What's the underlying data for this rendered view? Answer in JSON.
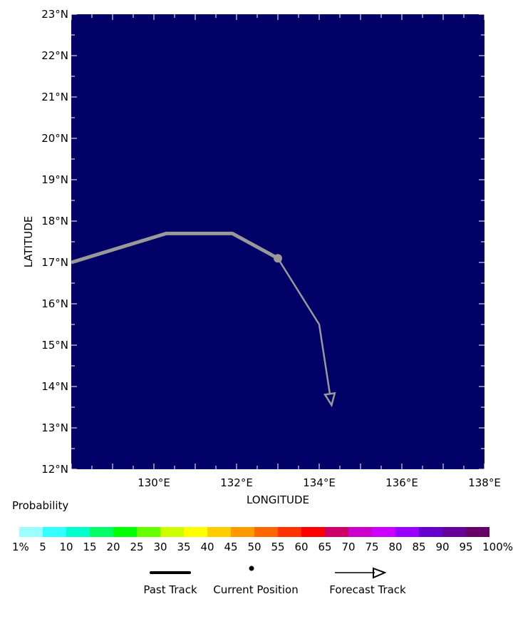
{
  "chart_data": {
    "type": "line",
    "xlabel": "LONGITUDE",
    "ylabel": "LATITUDE",
    "xlim": [
      128,
      138
    ],
    "ylim": [
      12,
      23
    ],
    "x_ticks": [
      {
        "v": 130,
        "label": "130°E"
      },
      {
        "v": 132,
        "label": "132°E"
      },
      {
        "v": 134,
        "label": "134°E"
      },
      {
        "v": 136,
        "label": "136°E"
      },
      {
        "v": 138,
        "label": "138°E"
      }
    ],
    "y_ticks": [
      {
        "v": 12,
        "label": "12°N"
      },
      {
        "v": 13,
        "label": "13°N"
      },
      {
        "v": 14,
        "label": "14°N"
      },
      {
        "v": 15,
        "label": "15°N"
      },
      {
        "v": 16,
        "label": "16°N"
      },
      {
        "v": 17,
        "label": "17°N"
      },
      {
        "v": 18,
        "label": "18°N"
      },
      {
        "v": 19,
        "label": "19°N"
      },
      {
        "v": 20,
        "label": "20°N"
      },
      {
        "v": 21,
        "label": "21°N"
      },
      {
        "v": 22,
        "label": "22°N"
      },
      {
        "v": 23,
        "label": "23°N"
      }
    ],
    "background_color": "#000066",
    "track_color": "#999999",
    "series": [
      {
        "name": "Past Track",
        "points": [
          [
            128.0,
            17.0
          ],
          [
            130.3,
            17.7
          ],
          [
            131.9,
            17.7
          ],
          [
            133.0,
            17.1
          ]
        ]
      },
      {
        "name": "Current Position",
        "points": [
          [
            133.0,
            17.1
          ]
        ]
      },
      {
        "name": "Forecast Track",
        "points": [
          [
            133.0,
            17.1
          ],
          [
            134.0,
            15.5
          ],
          [
            134.3,
            13.55
          ]
        ]
      }
    ],
    "colorbar": {
      "title": "Probability",
      "labels": [
        "1%",
        "5",
        "10",
        "15",
        "20",
        "25",
        "30",
        "35",
        "40",
        "45",
        "50",
        "55",
        "60",
        "65",
        "70",
        "75",
        "80",
        "85",
        "90",
        "95",
        "100%"
      ],
      "colors": [
        "#99ffff",
        "#33ffff",
        "#00ffcc",
        "#00ff66",
        "#00ff00",
        "#66ff00",
        "#ccff00",
        "#ffff00",
        "#ffcc00",
        "#ff9900",
        "#ff6600",
        "#ff3300",
        "#ff0000",
        "#cc0066",
        "#cc00cc",
        "#cc00ff",
        "#9900ff",
        "#6600cc",
        "#660099",
        "#660066"
      ]
    },
    "legend": {
      "past": "Past Track",
      "current": "Current Position",
      "forecast": "Forecast Track"
    }
  }
}
